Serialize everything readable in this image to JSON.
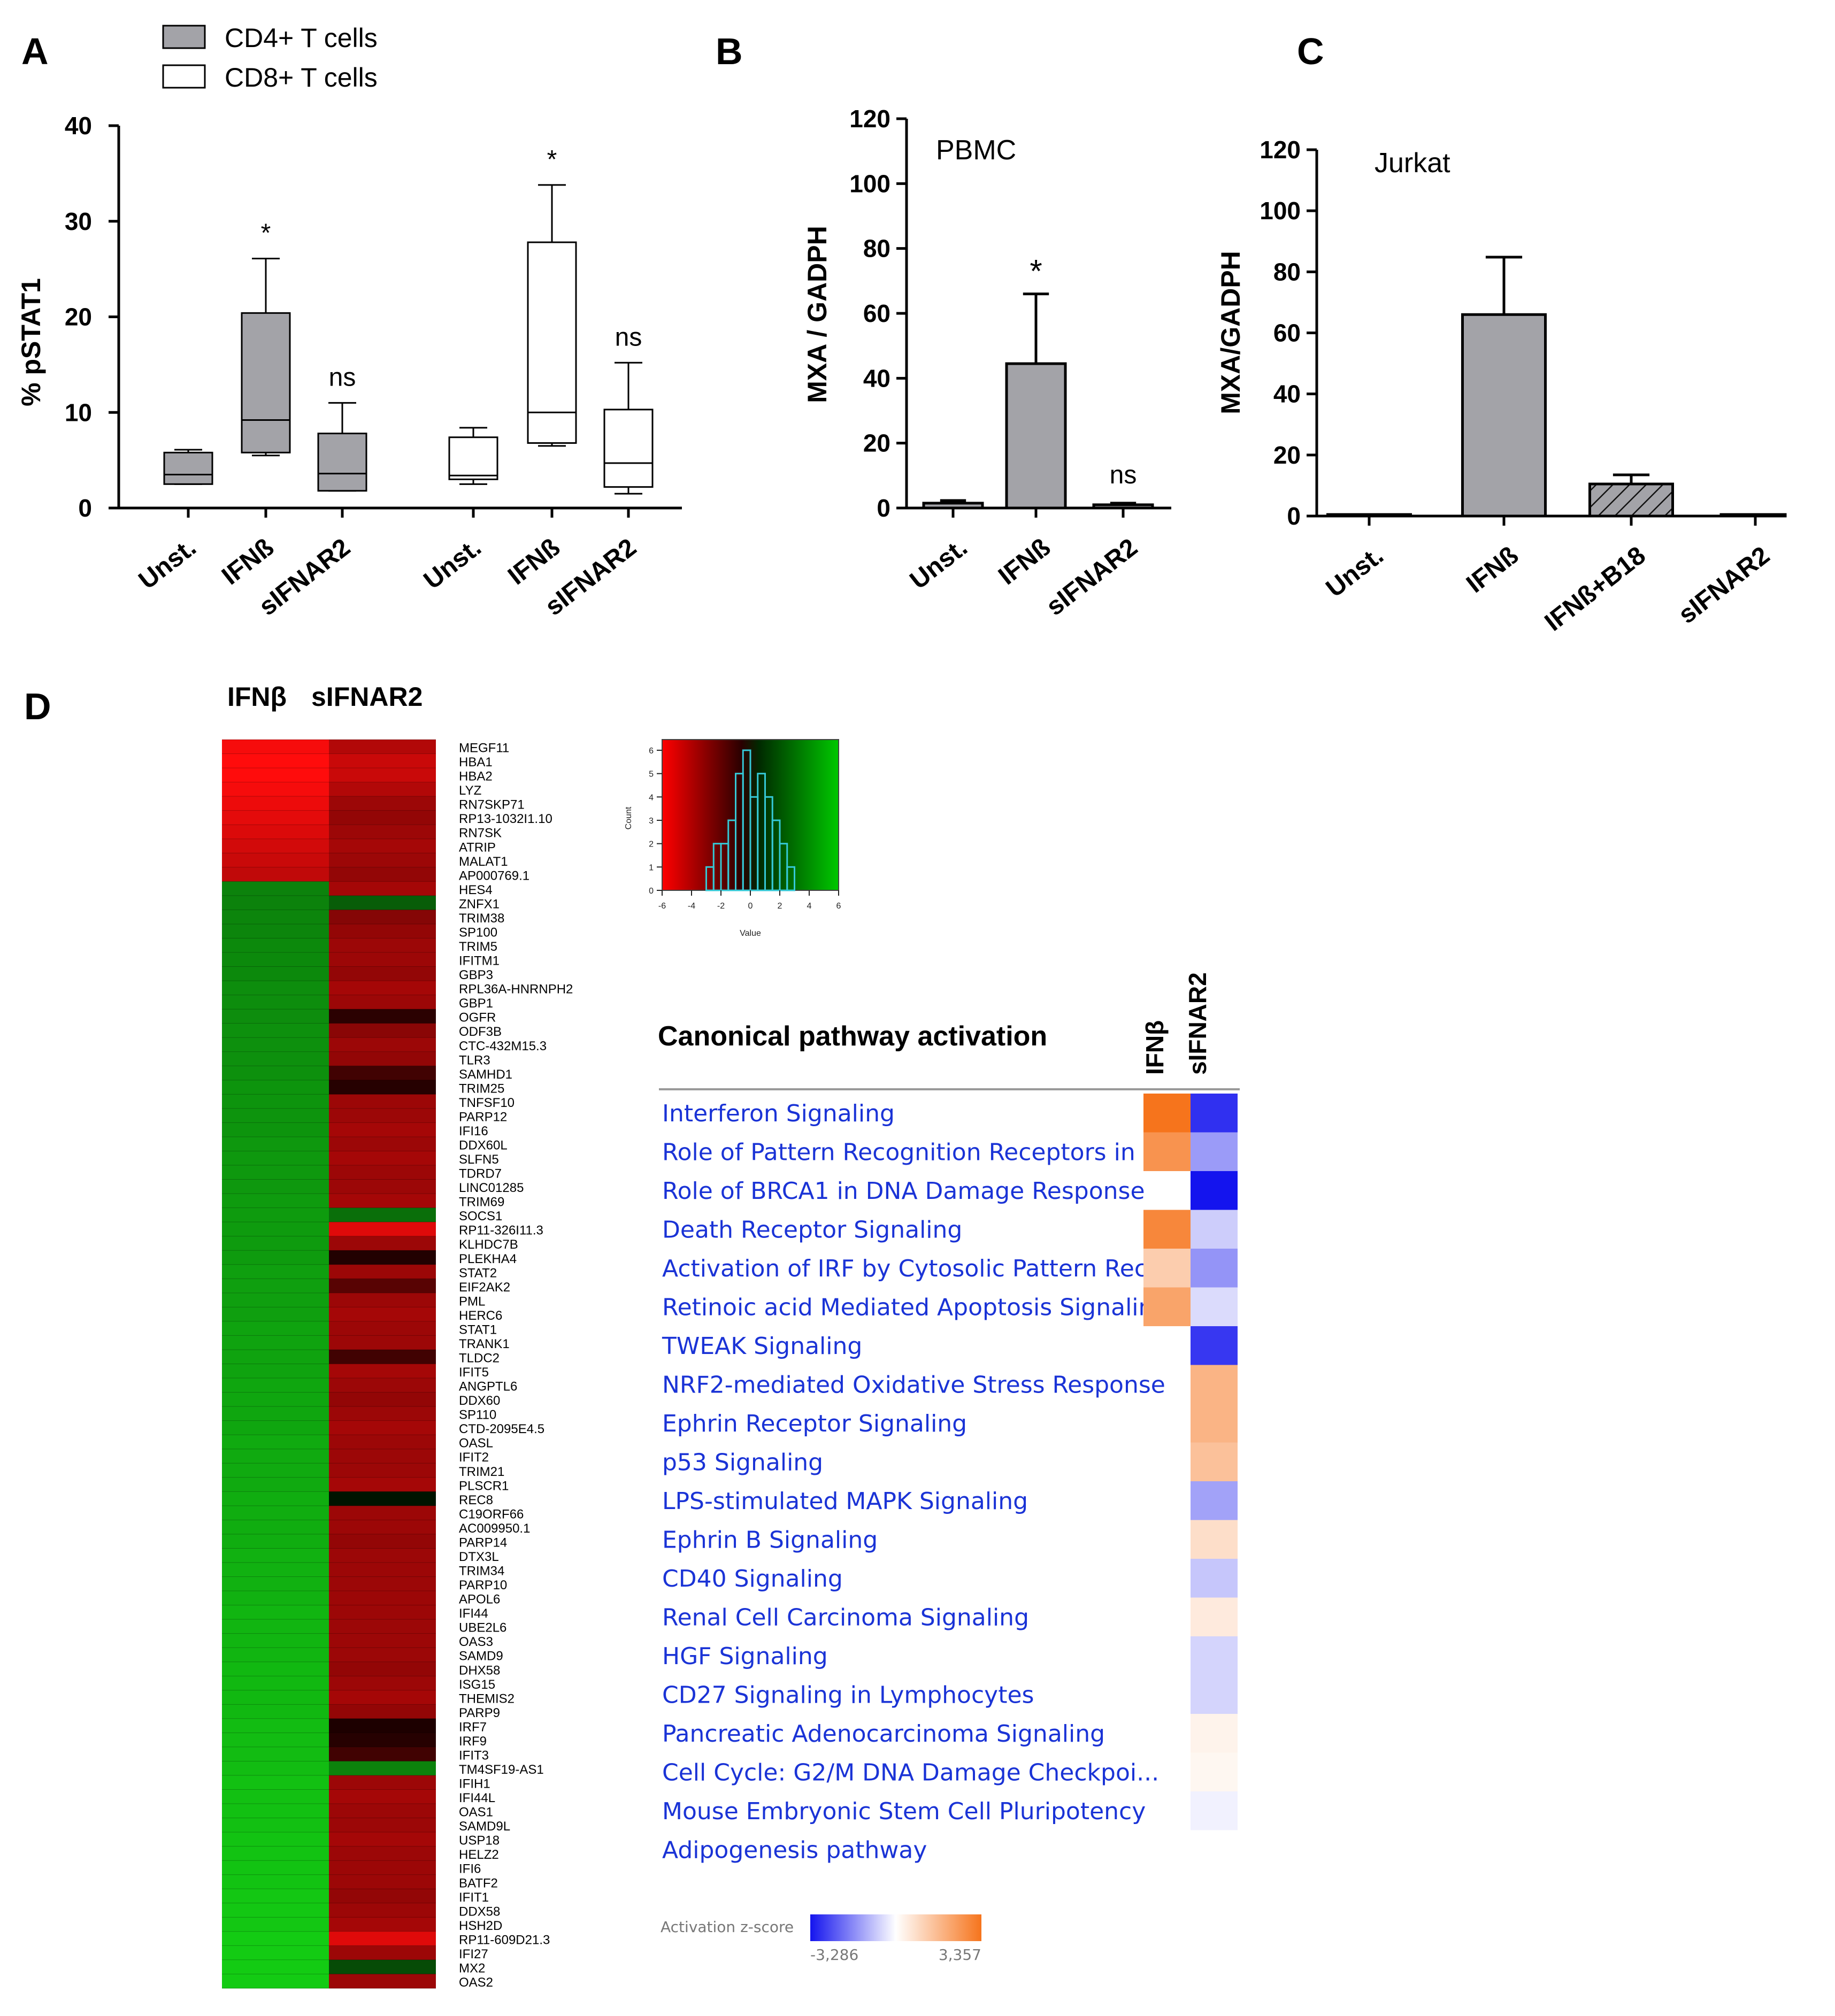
{
  "colors": {
    "cd4_fill": "#a3a3a8",
    "cd8_fill": "#ffffff",
    "bar_fill": "#a3a3a8",
    "up_red": "#ff1a1a",
    "down_green": "#1bd11b",
    "act_orange": "#f6741c",
    "inh_blue": "#1414ee",
    "link_blue": "#1a33d6"
  },
  "panels": {
    "A": "A",
    "B": "B",
    "C": "C",
    "D": "D"
  },
  "chart_data": [
    {
      "panel": "A",
      "type": "box",
      "ylabel": "% pSTAT1",
      "ylim": [
        0,
        40
      ],
      "yticks": [
        "0",
        "10",
        "20",
        "30",
        "40"
      ],
      "legend": [
        "CD4+ T cells",
        "CD8+ T cells"
      ],
      "categories": [
        "Unst.",
        "IFNß",
        "sIFNAR2",
        "Unst.",
        "IFNß",
        "sIFNAR2"
      ],
      "groups": [
        "CD4+ T cells",
        "CD4+ T cells",
        "CD4+ T cells",
        "CD8+ T cells",
        "CD8+ T cells",
        "CD8+ T cells"
      ],
      "min": [
        2.5,
        5.5,
        1.8,
        2.5,
        6.5,
        1.5
      ],
      "q1": [
        2.5,
        5.8,
        1.8,
        3.0,
        6.8,
        2.2
      ],
      "median": [
        3.5,
        9.2,
        3.6,
        3.4,
        10.0,
        4.7
      ],
      "q3": [
        5.8,
        20.4,
        7.8,
        7.4,
        27.8,
        10.3
      ],
      "max": [
        6.1,
        26.1,
        11.0,
        8.4,
        33.8,
        15.2
      ],
      "annotations": [
        "",
        "*",
        "ns",
        "",
        "*",
        "ns"
      ]
    },
    {
      "panel": "B",
      "type": "bar",
      "title": "PBMC",
      "ylabel": "MXA / GADPH",
      "ylim": [
        0,
        120
      ],
      "yticks": [
        "0",
        "20",
        "40",
        "60",
        "80",
        "100",
        "120"
      ],
      "categories": [
        "Unst.",
        "IFNß",
        "sIFNAR2"
      ],
      "values": [
        1.5,
        44.5,
        1.0
      ],
      "error": [
        0.8,
        21.5,
        0.5
      ],
      "annotations": [
        "",
        "*",
        "ns"
      ]
    },
    {
      "panel": "C",
      "type": "bar",
      "title": "Jurkat",
      "ylabel": "MXA/GADPH",
      "ylim": [
        0,
        120
      ],
      "yticks": [
        "0",
        "20",
        "40",
        "60",
        "80",
        "100",
        "120"
      ],
      "categories": [
        "Unst.",
        "IFNß",
        "IFNß+B18",
        "sIFNAR2"
      ],
      "values": [
        0.5,
        66.0,
        10.5,
        0.5
      ],
      "error": [
        0,
        18.8,
        3.0,
        0
      ],
      "hatched": [
        false,
        false,
        true,
        false
      ]
    },
    {
      "panel": "D",
      "type": "heatmap",
      "columns": [
        "IFNβ",
        "sIFNAR2"
      ],
      "genes": [
        "MEGF11",
        "HBA1",
        "HBA2",
        "LYZ",
        "RN7SKP71",
        "RP13-1032I1.10",
        "RN7SK",
        "ATRIP",
        "MALAT1",
        "AP000769.1",
        "HES4",
        "ZNFX1",
        "TRIM38",
        "SP100",
        "TRIM5",
        "IFITM1",
        "GBP3",
        "RPL36A-HNRNPH2",
        "GBP1",
        "OGFR",
        "ODF3B",
        "CTC-432M15.3",
        "TLR3",
        "SAMHD1",
        "TRIM25",
        "TNFSF10",
        "PARP12",
        "IFI16",
        "DDX60L",
        "SLFN5",
        "TDRD7",
        "LINC01285",
        "TRIM69",
        "SOCS1",
        "RP11-326I11.3",
        "KLHDC7B",
        "PLEKHA4",
        "STAT2",
        "EIF2AK2",
        "PML",
        "HERC6",
        "STAT1",
        "TRANK1",
        "TLDC2",
        "IFIT5",
        "ANGPTL6",
        "DDX60",
        "SP110",
        "CTD-2095E4.5",
        "OASL",
        "IFIT2",
        "TRIM21",
        "PLSCR1",
        "REC8",
        "C19ORF66",
        "AC009950.1",
        "PARP14",
        "DTX3L",
        "TRIM34",
        "PARP10",
        "APOL6",
        "IFI44",
        "UBE2L6",
        "OAS3",
        "SAMD9",
        "DHX58",
        "ISG15",
        "THEMIS2",
        "PARP9",
        "IRF7",
        "IRF9",
        "IFIT3",
        "TM4SF19-AS1",
        "IFIH1",
        "IFI44L",
        "OAS1",
        "SAMD9L",
        "USP18",
        "HELZ2",
        "IFI6",
        "BATF2",
        "IFIT1",
        "DDX58",
        "HSH2D",
        "RP11-609D21.3",
        "IFI27",
        "MX2",
        "OAS2"
      ],
      "ifnb_values": [
        -5.0,
        -5.2,
        -5.2,
        -5.0,
        -4.8,
        -4.6,
        -4.4,
        -4.2,
        -4.0,
        -3.8,
        3.0,
        3.0,
        3.1,
        3.1,
        3.2,
        3.2,
        3.2,
        3.3,
        3.3,
        3.3,
        3.4,
        3.4,
        3.4,
        3.4,
        3.5,
        3.5,
        3.5,
        3.5,
        3.6,
        3.6,
        3.6,
        3.6,
        3.7,
        3.7,
        3.7,
        3.7,
        3.7,
        3.8,
        3.8,
        3.8,
        3.8,
        3.9,
        3.9,
        3.9,
        3.9,
        4.0,
        4.0,
        4.0,
        4.0,
        4.1,
        4.1,
        4.1,
        4.1,
        4.2,
        4.2,
        4.2,
        4.2,
        4.3,
        4.3,
        4.3,
        4.3,
        4.4,
        4.4,
        4.4,
        4.4,
        4.5,
        4.5,
        4.5,
        4.5,
        4.6,
        4.6,
        4.6,
        4.6,
        4.7,
        4.7,
        4.7,
        4.7,
        4.8,
        4.8,
        4.8,
        4.8,
        4.9,
        4.9,
        4.9,
        5.0,
        5.0,
        5.0,
        5.0
      ],
      "sifnar2_values": [
        -3.5,
        -4.0,
        -4.0,
        -3.5,
        -3.0,
        -2.8,
        -3.0,
        -3.2,
        -3.0,
        -2.8,
        -3.2,
        2.0,
        -2.5,
        -2.8,
        -3.0,
        -3.0,
        -2.8,
        -3.2,
        -3.0,
        -0.5,
        -2.6,
        -3.0,
        -2.8,
        -1.0,
        -0.4,
        -3.0,
        -3.0,
        -3.2,
        -3.0,
        -3.2,
        -3.0,
        -3.0,
        -3.2,
        2.5,
        -4.5,
        -3.0,
        -0.3,
        -3.0,
        -1.5,
        -3.0,
        -3.2,
        -3.0,
        -3.0,
        -1.0,
        -3.2,
        -3.0,
        -2.8,
        -3.0,
        -3.2,
        -3.0,
        -3.0,
        -3.0,
        -3.2,
        0.0,
        -3.0,
        -3.0,
        -2.8,
        -3.0,
        -3.0,
        -3.0,
        -3.0,
        -3.0,
        -3.0,
        -3.0,
        -3.0,
        -2.8,
        -3.0,
        -3.2,
        -2.8,
        -0.2,
        -0.4,
        -1.0,
        3.0,
        -3.0,
        -3.2,
        -3.0,
        -3.0,
        -3.2,
        -3.0,
        -3.0,
        -3.0,
        -2.8,
        -3.0,
        -3.2,
        -4.5,
        -3.0,
        1.5,
        -3.0
      ],
      "color_key": {
        "xlabel": "Value",
        "ylabel": "Count",
        "xticks": [
          "-6",
          "-4",
          "-2",
          "0",
          "2",
          "4",
          "6"
        ],
        "yticks": [
          "0",
          "1",
          "2",
          "3",
          "4",
          "5",
          "6"
        ],
        "histogram_x": [
          -2.75,
          -2.25,
          -1.75,
          -1.25,
          -0.75,
          -0.25,
          0.25,
          0.75,
          1.25,
          1.75,
          2.25,
          2.75
        ],
        "histogram_counts": [
          1,
          2,
          2,
          3,
          5,
          6,
          4,
          5,
          4,
          3,
          2,
          1
        ]
      }
    },
    {
      "panel": "D",
      "type": "heatmap",
      "title": "Canonical pathway activation",
      "columns": [
        "IFNβ",
        "sIFNAR2"
      ],
      "pathways": [
        "Interferon Signaling",
        "Role of Pattern Recognition Receptors in ...",
        "Role of BRCA1 in DNA Damage Response",
        "Death Receptor Signaling",
        "Activation of IRF by Cytosolic Pattern Rec...",
        "Retinoic acid Mediated Apoptosis Signaling",
        "TWEAK Signaling",
        "NRF2-mediated Oxidative Stress Response",
        "Ephrin Receptor Signaling",
        "p53 Signaling",
        "LPS-stimulated MAPK Signaling",
        "Ephrin B Signaling",
        "CD40 Signaling",
        "Renal Cell Carcinoma Signaling",
        "HGF Signaling",
        "CD27 Signaling in Lymphocytes",
        "Pancreatic Adenocarcinoma Signaling",
        "Cell Cycle: G2/M DNA Damage Checkpoi...",
        "Mouse Embryonic Stem Cell Pluripotency",
        "Adipogenesis pathway"
      ],
      "ifnb_zscores": [
        3.357,
        2.6,
        null,
        2.9,
        1.2,
        2.2,
        null,
        null,
        null,
        null,
        null,
        null,
        null,
        null,
        null,
        null,
        null,
        null,
        null,
        null
      ],
      "sifnar2_zscores": [
        -2.9,
        -1.4,
        -3.286,
        -0.7,
        -1.5,
        -0.5,
        -2.8,
        1.8,
        1.8,
        1.5,
        -1.3,
        0.8,
        -0.8,
        0.5,
        -0.6,
        -0.6,
        0.3,
        0.2,
        -0.2,
        null
      ],
      "scale_label": "Activation z-score",
      "scale_min_label": "-3,286",
      "scale_max_label": "3,357",
      "scale_range": [
        -3.286,
        3.357
      ]
    }
  ]
}
